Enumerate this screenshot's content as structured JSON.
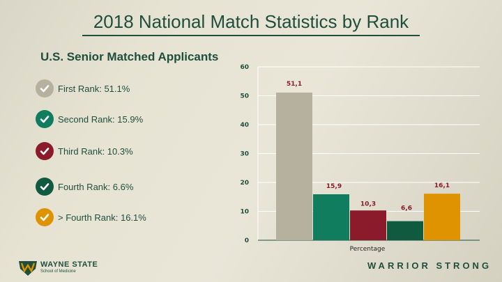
{
  "title": "2018 National Match Statistics by Rank",
  "subtitle": "U.S. Senior Matched Applicants",
  "legend": [
    {
      "label": "First Rank: 51.1%",
      "color": "#b6b09f",
      "icon": "check-icon"
    },
    {
      "label": "Second Rank: 15.9%",
      "color": "#0f7d5e",
      "icon": "check-icon"
    },
    {
      "label": "Third Rank: 10.3%",
      "color": "#8b1a2b",
      "icon": "check-icon"
    },
    {
      "label": "Fourth Rank: 6.6%",
      "color": "#105a40",
      "icon": "check-icon"
    },
    {
      "label": "> Fourth Rank: 16.1%",
      "color": "#df9300",
      "icon": "check-icon"
    }
  ],
  "footer": {
    "logo_name": "WAYNE STATE",
    "logo_sub": "School of Medicine",
    "tagline": "WARRIOR STRONG"
  },
  "chart_data": {
    "type": "bar",
    "categories": [
      "First Rank",
      "Second Rank",
      "Third Rank",
      "Fourth Rank",
      "> Fourth Rank"
    ],
    "values": [
      51.1,
      15.9,
      10.3,
      6.6,
      16.1
    ],
    "data_labels": [
      "51,1",
      "15,9",
      "10,3",
      "6,6",
      "16,1"
    ],
    "colors": [
      "#b6b09f",
      "#0f7d5e",
      "#8b1a2b",
      "#105a40",
      "#df9300"
    ],
    "xlabel": "Percentage",
    "ylabel": "",
    "ylim": [
      0,
      60
    ],
    "yticks": [
      0,
      10,
      20,
      30,
      40,
      50,
      60
    ],
    "grid": true
  }
}
